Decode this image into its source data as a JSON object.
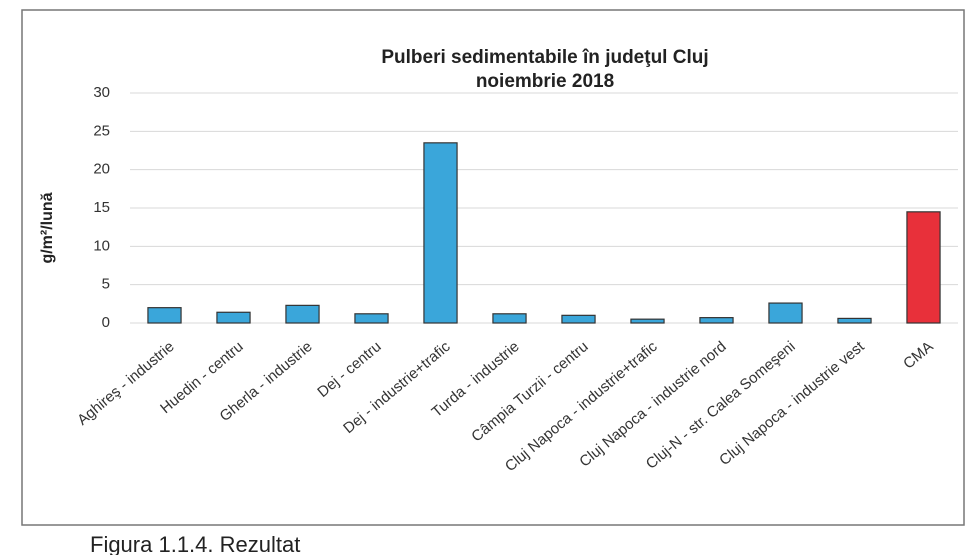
{
  "chart_data": {
    "type": "bar",
    "title": [
      "Pulberi sedimentabile în judeţul Cluj",
      "noiembrie 2018"
    ],
    "y_label": "g/m²/lună",
    "caption": "Figura 1.1.4. Rezultat",
    "categories": [
      "Aghireş - industrie",
      "Huedin - centru",
      "Gherla - industrie",
      "Dej - centru",
      "Dej - industrie+trafic",
      "Turda - industrie",
      "Câmpia Turzii - centru",
      "Cluj Napoca - industrie+trafic",
      "Cluj Napoca - industrie nord",
      "Cluj-N - str. Calea Someşeni",
      "Cluj Napoca - industrie vest",
      "CMA"
    ],
    "values": [
      2.0,
      1.4,
      2.3,
      1.2,
      23.5,
      1.2,
      1.0,
      0.5,
      0.7,
      2.6,
      0.6,
      14.5
    ],
    "colors": [
      "#3aa6da",
      "#3aa6da",
      "#3aa6da",
      "#3aa6da",
      "#3aa6da",
      "#3aa6da",
      "#3aa6da",
      "#3aa6da",
      "#3aa6da",
      "#3aa6da",
      "#3aa6da",
      "#e8303a"
    ],
    "ylim": [
      0,
      30
    ],
    "yticks": [
      0,
      5,
      10,
      15,
      20,
      25,
      30
    ],
    "grid": true
  }
}
